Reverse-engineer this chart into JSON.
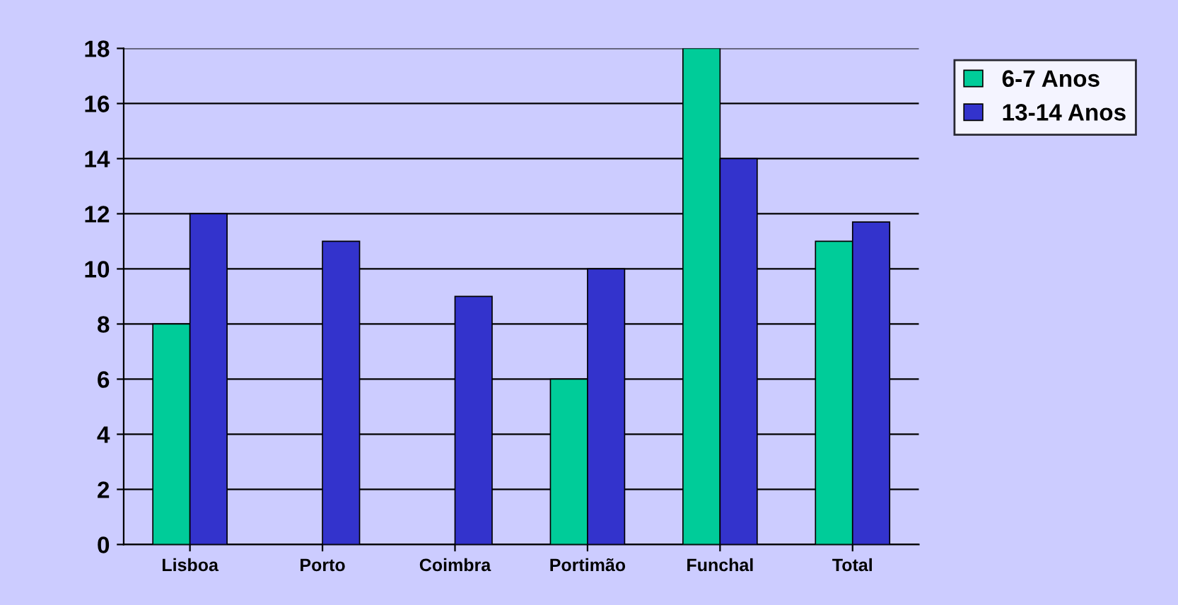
{
  "chart_data": {
    "type": "bar",
    "categories": [
      "Lisboa",
      "Porto",
      "Coimbra",
      "Portimão",
      "Funchal",
      "Total"
    ],
    "series": [
      {
        "name": "6-7 Anos",
        "color": "#00cc99",
        "values": [
          8,
          null,
          null,
          6,
          18,
          11
        ]
      },
      {
        "name": "13-14 Anos",
        "color": "#3333cc",
        "values": [
          12,
          11,
          9,
          10,
          14,
          11.7
        ]
      }
    ],
    "ylim": [
      0,
      18
    ],
    "yticks": [
      0,
      2,
      4,
      6,
      8,
      10,
      12,
      14,
      16,
      18
    ],
    "grid": "y",
    "legend": "top right"
  }
}
